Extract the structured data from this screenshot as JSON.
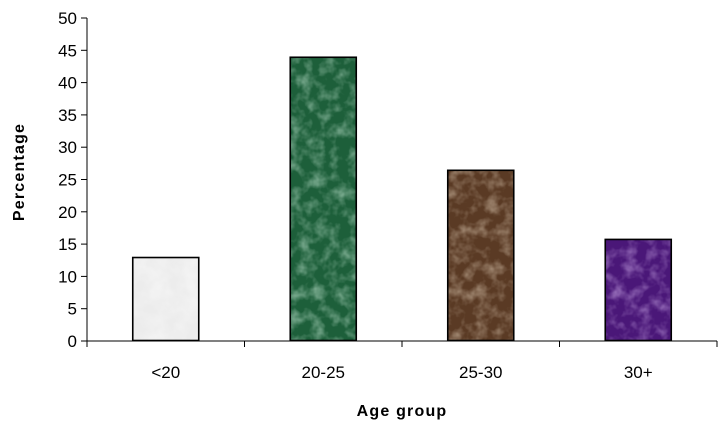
{
  "chart_data": {
    "type": "bar",
    "categories": [
      "<20",
      "20-25",
      "25-30",
      "30+"
    ],
    "values": [
      13,
      44,
      26.5,
      15.8
    ],
    "title": "",
    "xlabel": "Age group",
    "ylabel": "Percentage",
    "ylim": [
      0,
      50
    ],
    "yticks": [
      0,
      5,
      10,
      15,
      20,
      25,
      30,
      35,
      40,
      45,
      50
    ],
    "grid": false,
    "legend": "none",
    "bar_colors": [
      "#ececec",
      "#1d5f3a",
      "#5a3a24",
      "#4a1778"
    ],
    "bar_textures": [
      "light-gray-marble",
      "green-marble",
      "brown-marble",
      "purple-marble"
    ]
  }
}
